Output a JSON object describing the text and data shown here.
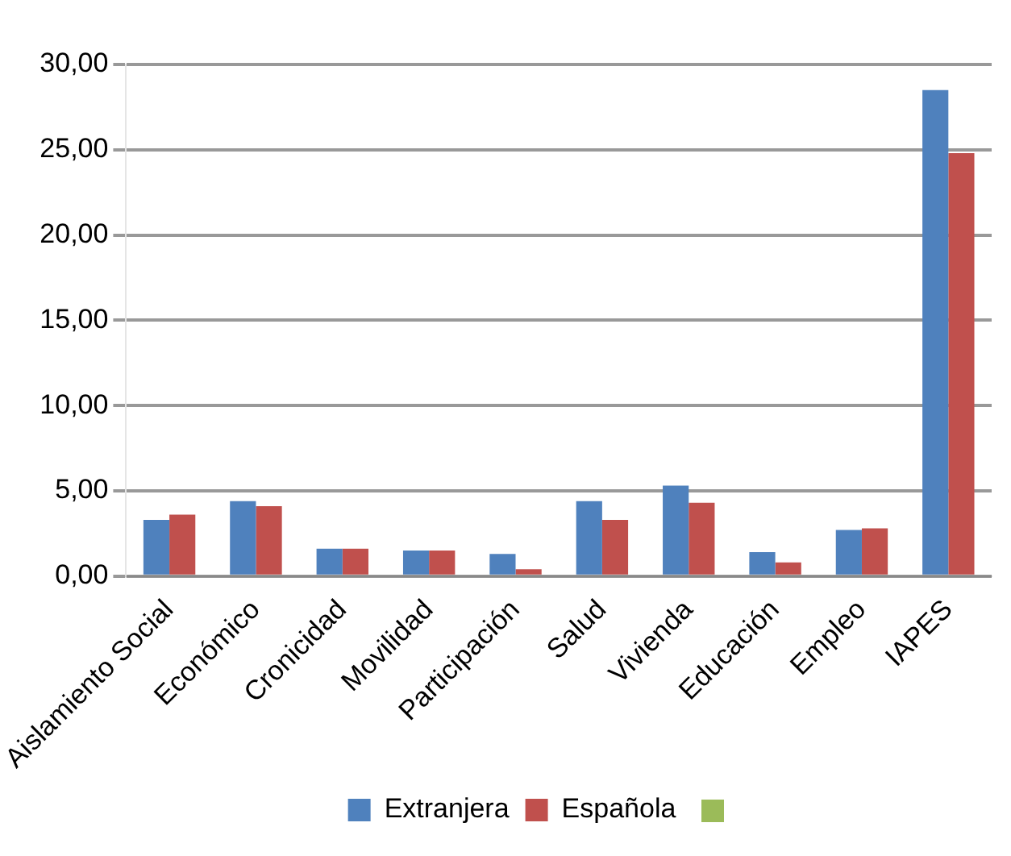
{
  "chart_data": {
    "type": "bar",
    "categories": [
      "Aislamiento Social",
      "Económico",
      "Cronicidad",
      "Movilidad",
      "Participación",
      "Salud",
      "Vivienda",
      "Educación",
      "Empleo",
      "IAPES"
    ],
    "series": [
      {
        "name": "Extranjera",
        "color": "#4f81bd",
        "values": [
          3.3,
          4.4,
          1.6,
          1.5,
          1.3,
          4.4,
          5.3,
          1.4,
          2.7,
          28.5
        ]
      },
      {
        "name": "Española",
        "color": "#c0504d",
        "values": [
          3.6,
          4.1,
          1.6,
          1.5,
          0.4,
          3.3,
          4.3,
          0.8,
          2.8,
          24.8
        ]
      }
    ],
    "ylim": [
      0,
      30
    ],
    "yticks": [
      {
        "value": 0,
        "label": "0,00"
      },
      {
        "value": 5,
        "label": "5,00"
      },
      {
        "value": 10,
        "label": "10,00"
      },
      {
        "value": 15,
        "label": "15,00"
      },
      {
        "value": 20,
        "label": "20,00"
      },
      {
        "value": 25,
        "label": "25,00"
      },
      {
        "value": 30,
        "label": "30,00"
      }
    ],
    "grid": "y",
    "legend": "bottom"
  }
}
